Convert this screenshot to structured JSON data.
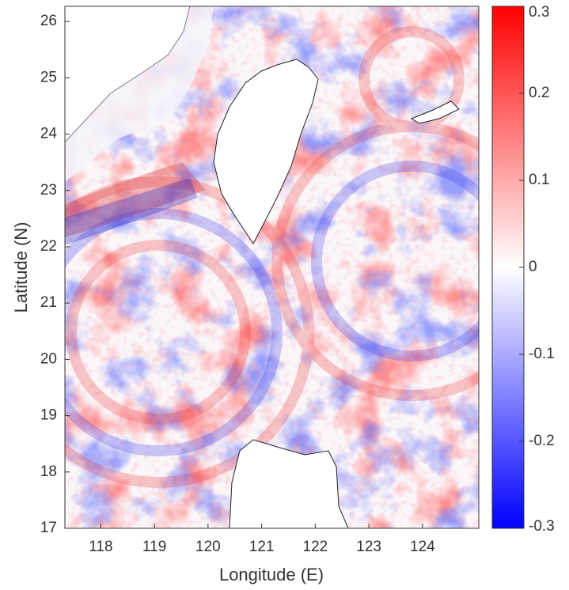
{
  "chart_data": {
    "type": "map",
    "xlabel": "Longitude (E)",
    "ylabel": "Latitude (N)",
    "xlim": [
      117.33,
      125.05
    ],
    "xticks": [
      118,
      119,
      120,
      121,
      122,
      123,
      124
    ],
    "ylim": [
      17,
      26.27
    ],
    "yticks": [
      17,
      18,
      19,
      20,
      21,
      22,
      23,
      24,
      25,
      26
    ],
    "colorbar": {
      "clim": [
        -0.3,
        0.3
      ],
      "ticks": [
        -0.3,
        -0.2,
        -0.1,
        0,
        0.1,
        0.2,
        0.3
      ],
      "colors": [
        "#0000ff",
        "#ffffff",
        "#ff0000"
      ]
    }
  }
}
